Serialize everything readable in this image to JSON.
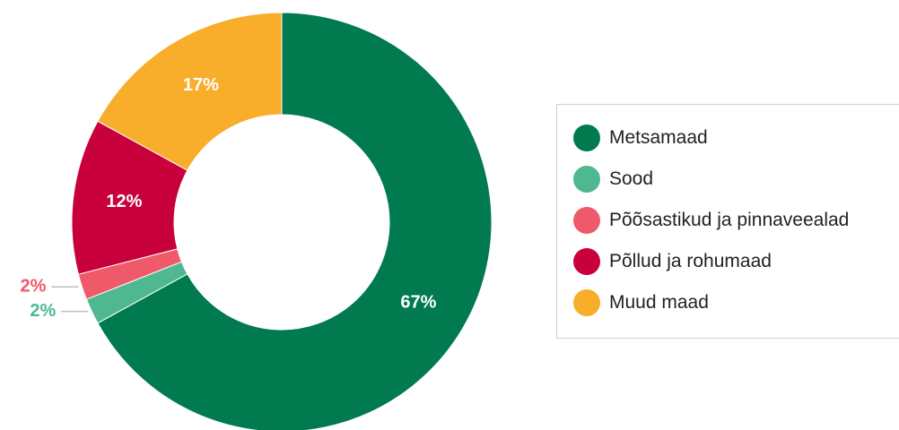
{
  "chart_data": {
    "type": "pie",
    "donut": true,
    "categories": [
      "Metsamaad",
      "Sood",
      "Põõsastikud ja pinnaveealad",
      "Põllud ja rohumaad",
      "Muud maad"
    ],
    "values": [
      67,
      2,
      2,
      12,
      17
    ],
    "value_labels": [
      "67%",
      "2%",
      "2%",
      "12%",
      "17%"
    ],
    "colors": [
      "#007a4e",
      "#4fb891",
      "#ef5a6a",
      "#c8003c",
      "#f8ae2b"
    ],
    "legend_position": "right"
  },
  "legend": {
    "items": [
      {
        "label": "Metsamaad",
        "color": "#007a4e"
      },
      {
        "label": "Sood",
        "color": "#4fb891"
      },
      {
        "label": "Põõsastikud ja pinnaveealad",
        "color": "#ef5a6a"
      },
      {
        "label": "Põllud ja rohumaad",
        "color": "#c8003c"
      },
      {
        "label": "Muud maad",
        "color": "#f8ae2b"
      }
    ]
  }
}
